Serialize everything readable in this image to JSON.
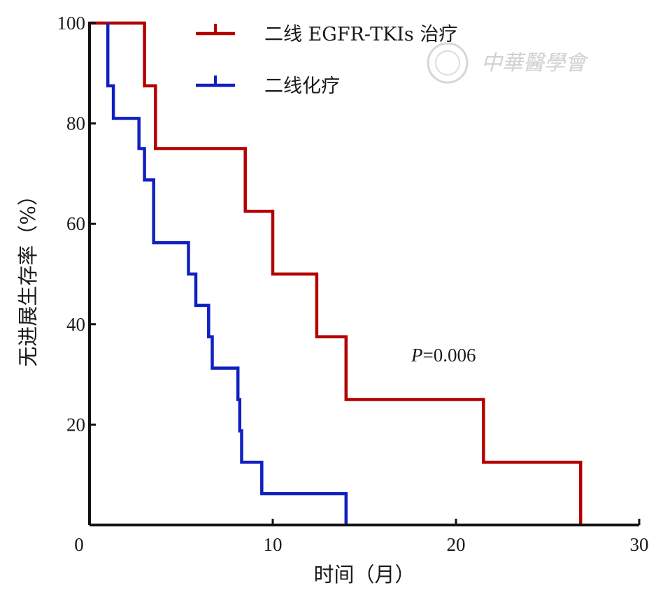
{
  "chart_data": {
    "type": "line",
    "subtype": "kaplan-meier-step",
    "xlabel": "时间（月）",
    "ylabel": "无进展生存率（%）",
    "xlim": [
      0,
      30
    ],
    "ylim": [
      0,
      100
    ],
    "xticks": [
      0,
      10,
      20,
      30
    ],
    "yticks": [
      20,
      40,
      60,
      80,
      100
    ],
    "grid": false,
    "legend_position": "top-center",
    "annotation": {
      "prefix": "P",
      "value": "=0.006"
    },
    "series": [
      {
        "name": "二线 EGFR-TKIs 治疗",
        "color": "#b30000",
        "points": [
          [
            0,
            100
          ],
          [
            3,
            100
          ],
          [
            3,
            87.5
          ],
          [
            3.6,
            87.5
          ],
          [
            3.6,
            75
          ],
          [
            8.5,
            75
          ],
          [
            8.5,
            62.5
          ],
          [
            10,
            62.5
          ],
          [
            10,
            50
          ],
          [
            12.4,
            50
          ],
          [
            12.4,
            37.5
          ],
          [
            14,
            37.5
          ],
          [
            14,
            25
          ],
          [
            21.5,
            25
          ],
          [
            21.5,
            12.5
          ],
          [
            26.8,
            12.5
          ],
          [
            26.8,
            0
          ]
        ]
      },
      {
        "name": "二线化疗",
        "color": "#1020c0",
        "points": [
          [
            1,
            100
          ],
          [
            1,
            87.5
          ],
          [
            1.3,
            87.5
          ],
          [
            1.3,
            81
          ],
          [
            2.7,
            81
          ],
          [
            2.7,
            75
          ],
          [
            3,
            75
          ],
          [
            3,
            68.75
          ],
          [
            3.5,
            68.75
          ],
          [
            3.5,
            56.25
          ],
          [
            5.4,
            56.25
          ],
          [
            5.4,
            50
          ],
          [
            5.8,
            50
          ],
          [
            5.8,
            43.75
          ],
          [
            6.5,
            43.75
          ],
          [
            6.5,
            37.5
          ],
          [
            6.7,
            37.5
          ],
          [
            6.7,
            31.25
          ],
          [
            8.1,
            31.25
          ],
          [
            8.1,
            25
          ],
          [
            8.2,
            25
          ],
          [
            8.2,
            18.75
          ],
          [
            8.3,
            18.75
          ],
          [
            8.3,
            12.5
          ],
          [
            9.4,
            12.5
          ],
          [
            9.4,
            6.25
          ],
          [
            14,
            6.25
          ],
          [
            14,
            0
          ]
        ]
      }
    ]
  },
  "watermark": {
    "text": "中華醫學會"
  }
}
